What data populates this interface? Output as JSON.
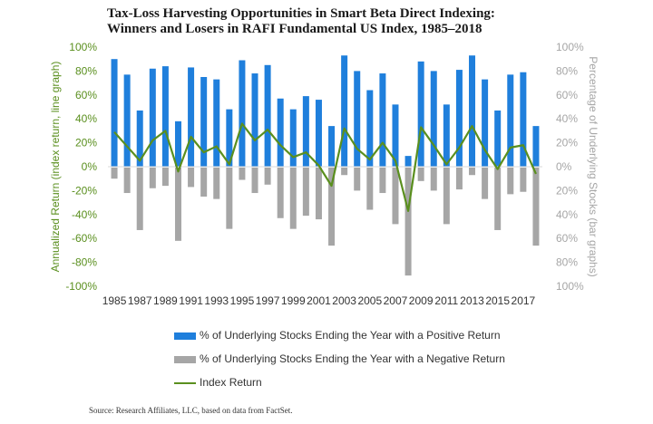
{
  "title_line1": "Tax-Loss Harvesting Opportunities in Smart Beta Direct Indexing:",
  "title_line2": "Winners and Losers in RAFI Fundamental US Index, 1985–2018",
  "source": "Source: Research Affiliates, LLC, based on data from FactSet.",
  "colors": {
    "positive": "#1f7fdc",
    "negative": "#a6a6a6",
    "index": "#5a8f1e",
    "left_axis": "#5a8f1e",
    "right_axis": "#a6a6a6"
  },
  "chart_data": {
    "type": "bar",
    "title": "Tax-Loss Harvesting Opportunities in Smart Beta Direct Indexing: Winners and Losers in RAFI Fundamental US Index, 1985–2018",
    "ylabel_left": "Annualized Return (index return, line graph)",
    "ylabel_right": "Percentage of Underlying Stocks (bar graphs)",
    "ylim": [
      -100,
      100
    ],
    "yticks_left": [
      "100%",
      "80%",
      "60%",
      "40%",
      "20%",
      "0%",
      "-20%",
      "-40%",
      "-60%",
      "-80%",
      "-100%"
    ],
    "yticks_right": [
      "100%",
      "80%",
      "60%",
      "40%",
      "20%",
      "0%",
      "20%",
      "40%",
      "60%",
      "80%",
      "100%"
    ],
    "years": [
      1985,
      1986,
      1987,
      1988,
      1989,
      1990,
      1991,
      1992,
      1993,
      1994,
      1995,
      1996,
      1997,
      1998,
      1999,
      2000,
      2001,
      2002,
      2003,
      2004,
      2005,
      2006,
      2007,
      2008,
      2009,
      2010,
      2011,
      2012,
      2013,
      2014,
      2015,
      2016,
      2017,
      2018
    ],
    "xtick_labels": [
      "1985",
      "1987",
      "1989",
      "1991",
      "1993",
      "1995",
      "1997",
      "1999",
      "2001",
      "2003",
      "2005",
      "2007",
      "2009",
      "2011",
      "2013",
      "2015",
      "2017"
    ],
    "series": [
      {
        "name": "% of Underlying Stocks Ending the Year with a Positive Return",
        "kind": "bar",
        "values": [
          90,
          77,
          47,
          82,
          84,
          38,
          83,
          75,
          73,
          48,
          89,
          78,
          85,
          57,
          48,
          59,
          56,
          34,
          93,
          80,
          64,
          78,
          52,
          9,
          88,
          80,
          52,
          81,
          93,
          73,
          47,
          77,
          79,
          34
        ]
      },
      {
        "name": "% of Underlying Stocks Ending the Year with a Negative Return",
        "kind": "bar",
        "values": [
          10,
          22,
          53,
          18,
          16,
          62,
          17,
          25,
          27,
          52,
          11,
          22,
          15,
          43,
          52,
          41,
          44,
          66,
          7,
          20,
          36,
          22,
          48,
          91,
          12,
          20,
          48,
          19,
          7,
          27,
          53,
          23,
          21,
          66
        ]
      },
      {
        "name": "Index Return",
        "kind": "line",
        "values": [
          29,
          17,
          5,
          22,
          30,
          -4,
          25,
          12,
          17,
          2,
          36,
          22,
          31,
          18,
          8,
          12,
          1,
          -16,
          32,
          15,
          6,
          20,
          5,
          -37,
          33,
          18,
          2,
          16,
          34,
          14,
          -2,
          16,
          18,
          -6
        ]
      }
    ]
  }
}
